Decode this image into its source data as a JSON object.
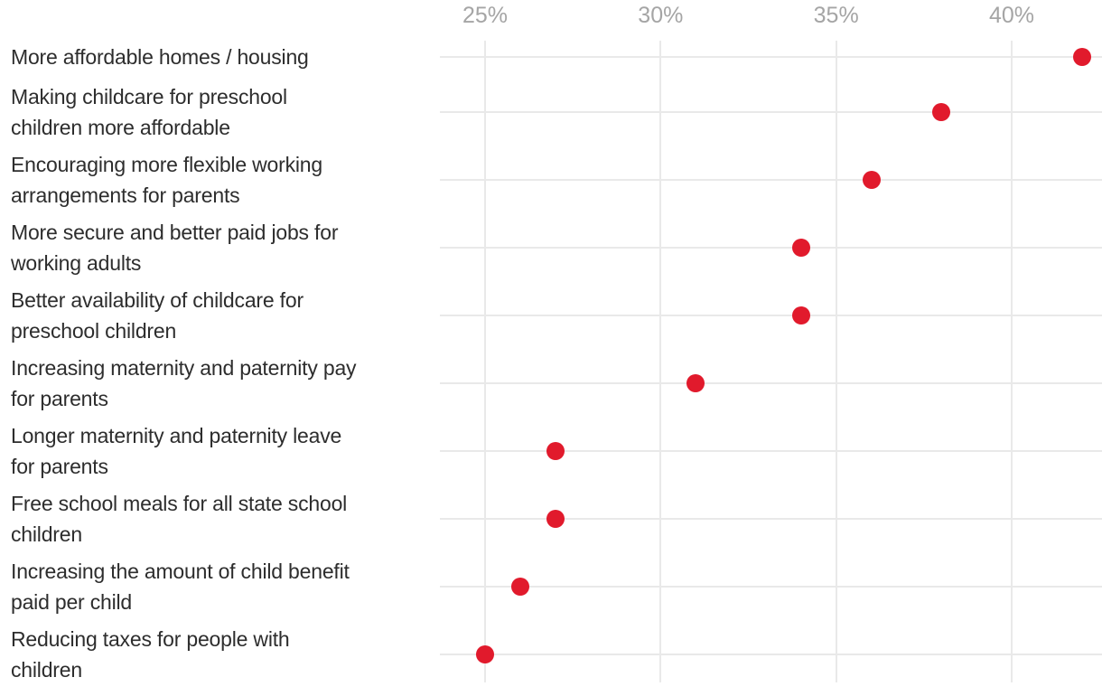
{
  "chart_data": {
    "type": "scatter",
    "subtype": "horizontal-dot-plot",
    "title": "",
    "xlabel": "",
    "ylabel": "",
    "categories": [
      "More affordable homes / housing",
      "Making childcare for preschool\nchildren more affordable",
      "Encouraging more flexible working\narrangements for parents",
      "More secure and better paid jobs for\nworking adults",
      "Better availability of childcare for\npreschool children",
      "Increasing maternity and paternity pay\nfor parents",
      "Longer maternity and paternity leave\nfor parents",
      "Free school meals for all state school\nchildren",
      "Increasing the amount of child benefit\npaid per child",
      "Reducing taxes for people with\nchildren"
    ],
    "values": [
      42,
      38,
      36,
      34,
      34,
      31,
      27,
      27,
      26,
      25
    ],
    "value_unit": "%",
    "x_ticks": [
      {
        "value": 25,
        "label": "25%"
      },
      {
        "value": 30,
        "label": "30%"
      },
      {
        "value": 35,
        "label": "35%"
      },
      {
        "value": 40,
        "label": "40%"
      }
    ],
    "xlim": [
      23.7,
      42.6
    ],
    "grid": true,
    "legend": false,
    "colors": {
      "dot": "#e11a2c",
      "gridline": "#e9e9e9",
      "tick_label": "#a5a5a5",
      "category_label": "#2d2d2d",
      "background": "#ffffff"
    }
  }
}
